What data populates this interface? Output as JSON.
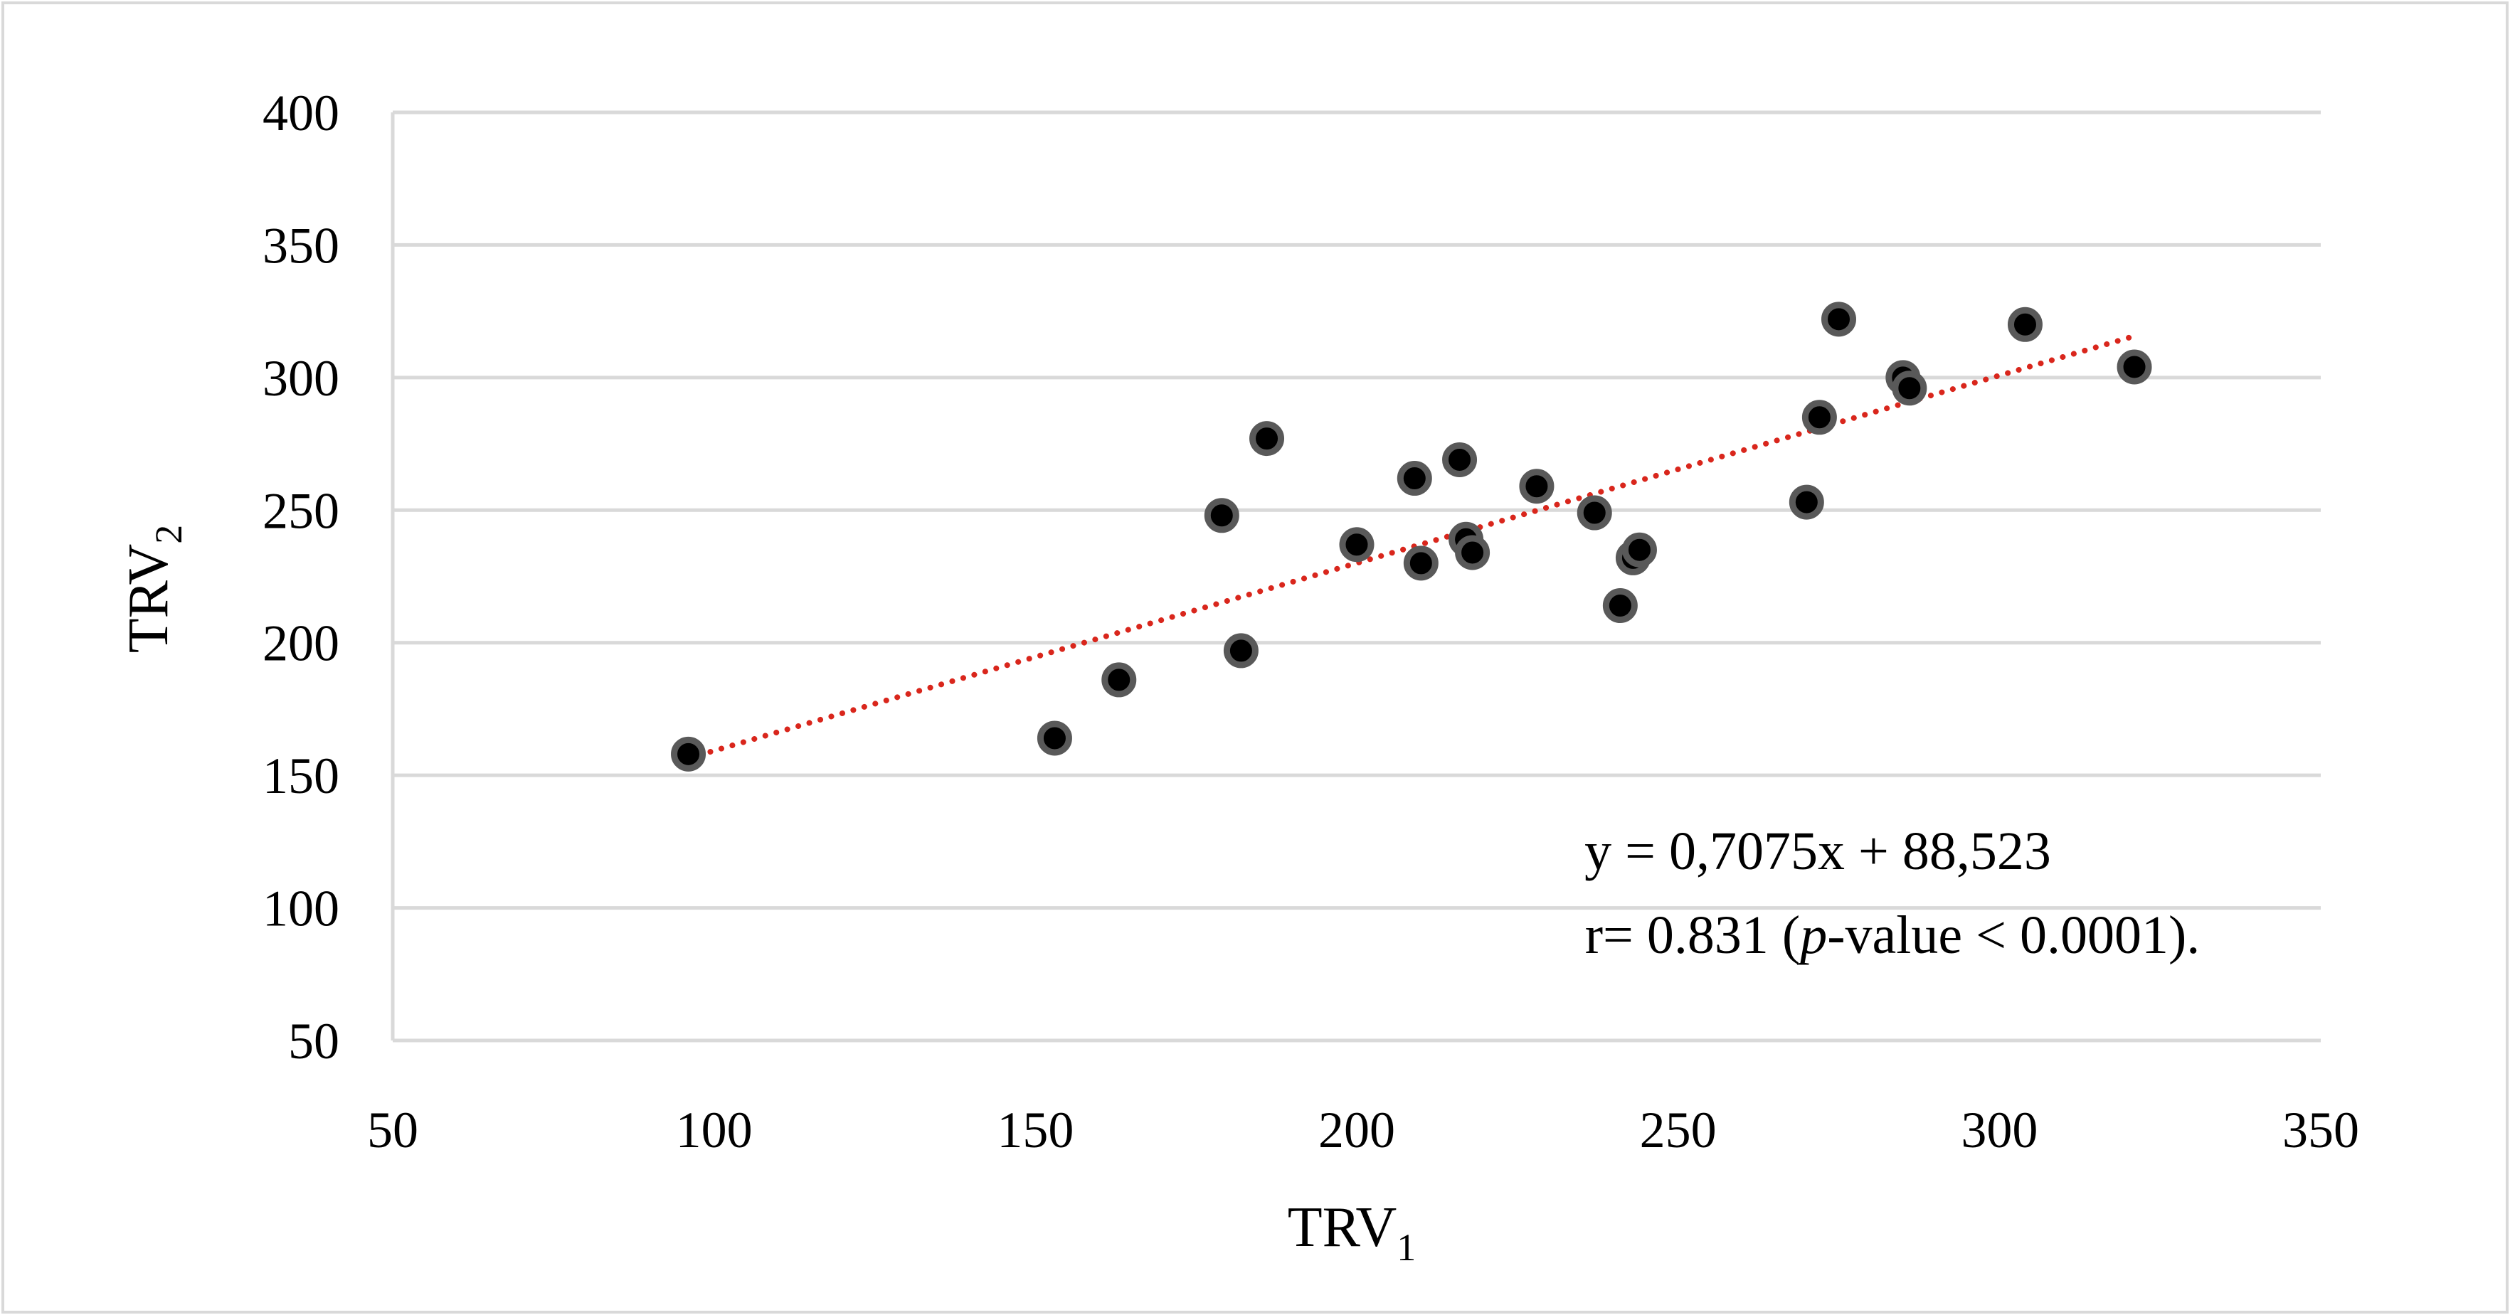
{
  "chart_data": {
    "type": "scatter",
    "title": "",
    "xlabel": {
      "main": "TRV",
      "sub": "1"
    },
    "ylabel": {
      "main": "TRV",
      "sub": "2"
    },
    "xlim": [
      50,
      350
    ],
    "ylim": [
      50,
      400
    ],
    "xticks": [
      "50",
      "100",
      "150",
      "200",
      "250",
      "300",
      "350"
    ],
    "yticks": [
      "50",
      "100",
      "150",
      "200",
      "250",
      "300",
      "350",
      "400"
    ],
    "grid": {
      "horizontal": true,
      "vertical": false
    },
    "series": [
      {
        "name": "TRV",
        "marker_color": "#000000",
        "marker_edge_color": "#595959",
        "points": [
          {
            "x": 96,
            "y": 158
          },
          {
            "x": 153,
            "y": 164
          },
          {
            "x": 163,
            "y": 186
          },
          {
            "x": 179,
            "y": 248
          },
          {
            "x": 182,
            "y": 197
          },
          {
            "x": 186,
            "y": 277
          },
          {
            "x": 200,
            "y": 237
          },
          {
            "x": 209,
            "y": 262
          },
          {
            "x": 210,
            "y": 230
          },
          {
            "x": 216,
            "y": 269
          },
          {
            "x": 217,
            "y": 239
          },
          {
            "x": 218,
            "y": 234
          },
          {
            "x": 228,
            "y": 259
          },
          {
            "x": 237,
            "y": 249
          },
          {
            "x": 241,
            "y": 214
          },
          {
            "x": 243,
            "y": 232
          },
          {
            "x": 244,
            "y": 235
          },
          {
            "x": 270,
            "y": 253
          },
          {
            "x": 272,
            "y": 285
          },
          {
            "x": 275,
            "y": 322
          },
          {
            "x": 285,
            "y": 300
          },
          {
            "x": 286,
            "y": 296
          },
          {
            "x": 304,
            "y": 320
          },
          {
            "x": 321,
            "y": 304
          }
        ]
      }
    ],
    "trendline": {
      "slope": 0.7075,
      "intercept": 88.523,
      "x_start": 96,
      "x_end": 321,
      "color": "#d9261c",
      "style": "dotted"
    },
    "annotation": {
      "equation": "y = 0,7075x + 88,523",
      "stat_prefix": "r= 0.831 (",
      "stat_italic": "p",
      "stat_suffix": "-value < 0.0001)."
    },
    "colors": {
      "grid": "#d9d9d9",
      "frame": "#d9d9d9",
      "text": "#000000"
    }
  }
}
